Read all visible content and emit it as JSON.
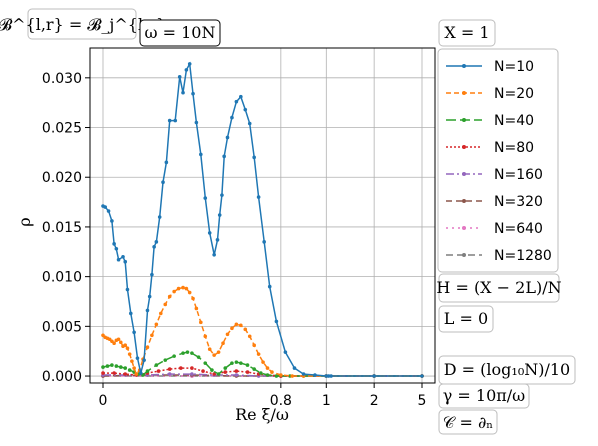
{
  "chart_data": {
    "type": "line",
    "ylabel": "ρ",
    "xlabel": "Re ξ/ω",
    "y_ticks": [
      "0.000",
      "0.005",
      "0.010",
      "0.015",
      "0.020",
      "0.025",
      "0.030"
    ],
    "y_tick_values": [
      0,
      0.005,
      0.01,
      0.015,
      0.02,
      0.025,
      0.03
    ],
    "ylim": [
      -0.0007,
      0.033
    ],
    "x_ticks": [
      {
        "label": "0",
        "value": 0
      },
      {
        "label": "0.8",
        "value": 0.8
      },
      {
        "label": "1",
        "value": 1
      },
      {
        "label": "2",
        "value": 2
      },
      {
        "label": "5",
        "value": 5
      }
    ],
    "x_scale": "piecewise: linear 0–0.8, then compressed toward 5",
    "x_breakpoints": [
      [
        0,
        0
      ],
      [
        0.8,
        0.5575
      ],
      [
        1,
        0.7
      ],
      [
        2,
        0.85
      ],
      [
        5,
        1
      ]
    ],
    "grid": true,
    "legend_position": "right",
    "series": [
      {
        "name": "N=10",
        "color": "#1f77b4",
        "dash": "",
        "x": [
          0,
          0.01,
          0.025,
          0.04,
          0.05,
          0.06,
          0.07,
          0.09,
          0.1,
          0.11,
          0.125,
          0.14,
          0.155,
          0.17,
          0.185,
          0.2,
          0.21,
          0.22,
          0.23,
          0.24,
          0.255,
          0.27,
          0.285,
          0.3,
          0.325,
          0.345,
          0.36,
          0.375,
          0.39,
          0.405,
          0.42,
          0.44,
          0.46,
          0.48,
          0.5,
          0.515,
          0.525,
          0.535,
          0.545,
          0.56,
          0.58,
          0.6,
          0.62,
          0.64,
          0.66,
          0.68,
          0.7,
          0.725,
          0.75,
          0.78,
          0.82,
          0.86,
          0.9,
          0.95,
          1.0,
          1.05,
          1.1,
          2,
          5
        ],
        "y": [
          0.0171,
          0.017,
          0.0166,
          0.0156,
          0.0133,
          0.0128,
          0.0117,
          0.012,
          0.0115,
          0.0087,
          0.0063,
          0.0044,
          0.0018,
          0.0003,
          0.0016,
          0.0066,
          0.008,
          0.0102,
          0.013,
          0.0135,
          0.016,
          0.0195,
          0.0215,
          0.0257,
          0.0257,
          0.0301,
          0.0285,
          0.0308,
          0.0314,
          0.0284,
          0.0255,
          0.0223,
          0.0179,
          0.0144,
          0.0122,
          0.0137,
          0.0162,
          0.0182,
          0.0221,
          0.024,
          0.026,
          0.0276,
          0.0281,
          0.0268,
          0.0254,
          0.022,
          0.018,
          0.0135,
          0.009,
          0.0055,
          0.0024,
          0.0008,
          0.0002,
          0.0001,
          0.0,
          0.0,
          0.0,
          0.0,
          0.0
        ]
      },
      {
        "name": "N=20",
        "color": "#ff7f0e",
        "dash": "5,3",
        "x": [
          0,
          0.01,
          0.02,
          0.03,
          0.04,
          0.05,
          0.06,
          0.07,
          0.08,
          0.09,
          0.1,
          0.11,
          0.12,
          0.13,
          0.14,
          0.15,
          0.165,
          0.18,
          0.2,
          0.22,
          0.24,
          0.26,
          0.28,
          0.3,
          0.32,
          0.34,
          0.36,
          0.375,
          0.39,
          0.405,
          0.42,
          0.44,
          0.46,
          0.48,
          0.5,
          0.52,
          0.54,
          0.56,
          0.58,
          0.6,
          0.62,
          0.64,
          0.66,
          0.68,
          0.7,
          0.72,
          0.74,
          0.76,
          0.8,
          0.85,
          0.9,
          1.0,
          2,
          5
        ],
        "y": [
          0.0041,
          0.0039,
          0.0038,
          0.0037,
          0.0035,
          0.0033,
          0.0036,
          0.0037,
          0.0034,
          0.003,
          0.0031,
          0.0028,
          0.0022,
          0.0015,
          0.0008,
          0.0002,
          0.0006,
          0.0017,
          0.0029,
          0.0041,
          0.0052,
          0.0063,
          0.0072,
          0.008,
          0.0085,
          0.0088,
          0.0089,
          0.0088,
          0.0084,
          0.0078,
          0.0068,
          0.0054,
          0.004,
          0.0027,
          0.0021,
          0.0024,
          0.0033,
          0.0042,
          0.0048,
          0.0052,
          0.0051,
          0.0047,
          0.004,
          0.0031,
          0.0022,
          0.0014,
          0.0008,
          0.0004,
          0.0001,
          0.0,
          0.0,
          0.0,
          0.0,
          0.0
        ]
      },
      {
        "name": "N=40",
        "color": "#2ca02c",
        "dash": "10,4",
        "x": [
          0,
          0.02,
          0.04,
          0.06,
          0.08,
          0.1,
          0.12,
          0.14,
          0.16,
          0.18,
          0.2,
          0.24,
          0.28,
          0.32,
          0.36,
          0.38,
          0.4,
          0.43,
          0.46,
          0.49,
          0.52,
          0.55,
          0.58,
          0.6,
          0.62,
          0.65,
          0.68,
          0.71,
          0.74,
          0.78,
          0.84,
          0.9,
          1.0,
          2,
          5
        ],
        "y": [
          0.0009,
          0.001,
          0.0011,
          0.001,
          0.0009,
          0.0008,
          0.0006,
          0.0004,
          0.0002,
          0.0001,
          0.0005,
          0.0011,
          0.0016,
          0.002,
          0.0023,
          0.0024,
          0.0023,
          0.0019,
          0.0013,
          0.0006,
          0.0002,
          0.0008,
          0.0013,
          0.0014,
          0.0013,
          0.0011,
          0.0007,
          0.0003,
          0.0001,
          0.0,
          0.0,
          0.0,
          0.0,
          0.0,
          0.0
        ]
      },
      {
        "name": "N=80",
        "color": "#d62728",
        "dash": "2,2",
        "x": [
          0,
          0.05,
          0.1,
          0.15,
          0.2,
          0.25,
          0.3,
          0.35,
          0.4,
          0.45,
          0.5,
          0.55,
          0.6,
          0.65,
          0.7,
          0.8,
          1.0,
          2,
          5
        ],
        "y": [
          0.0003,
          0.0003,
          0.0002,
          0.0001,
          0.0003,
          0.0005,
          0.0007,
          0.0008,
          0.0008,
          0.0005,
          0.0002,
          0.0004,
          0.0005,
          0.0004,
          0.0002,
          0.0,
          0.0,
          0.0,
          0.0
        ]
      },
      {
        "name": "N=160",
        "color": "#9467bd",
        "dash": "8,3,2,3",
        "x": [
          0,
          0.1,
          0.2,
          0.3,
          0.4,
          0.5,
          0.6,
          0.7,
          0.8,
          1.0,
          2,
          5
        ],
        "y": [
          0.0001,
          0.0001,
          0.0001,
          0.0002,
          0.0002,
          0.0001,
          0.0001,
          0.0,
          0.0,
          0.0,
          0.0,
          0.0
        ]
      },
      {
        "name": "N=320",
        "color": "#8c564b",
        "dash": "6,4",
        "x": [
          0,
          0.2,
          0.4,
          0.6,
          0.8,
          1.0,
          2,
          5
        ],
        "y": [
          0.0,
          0.0001,
          0.0001,
          0.0,
          0.0,
          0.0,
          0.0,
          0.0
        ]
      },
      {
        "name": "N=640",
        "color": "#e377c2",
        "dash": "2,4",
        "x": [
          0,
          0.4,
          0.8,
          1.0,
          2,
          5
        ],
        "y": [
          0.0,
          0.0,
          0.0,
          0.0,
          0.0,
          0.0
        ]
      },
      {
        "name": "N=1280",
        "color": "#7f7f7f",
        "dash": "7,4",
        "x": [
          0,
          0.4,
          0.8,
          1.0,
          2,
          5
        ],
        "y": [
          0.0,
          0.0,
          0.0,
          0.0,
          0.0,
          0.0
        ]
      }
    ]
  },
  "annotations": {
    "top_left": "𝓑^{l,r} = 𝓑_j^{l,r}",
    "omega": "ω = 10N",
    "x_param": "X = 1",
    "h_formula": "H = (X − 2L)/N",
    "l_param": "L = 0",
    "d_formula": "D = (log₁₀N)/10",
    "gamma": "γ = 10π/ω",
    "c_param": "𝒞 = ∂ₙ"
  }
}
